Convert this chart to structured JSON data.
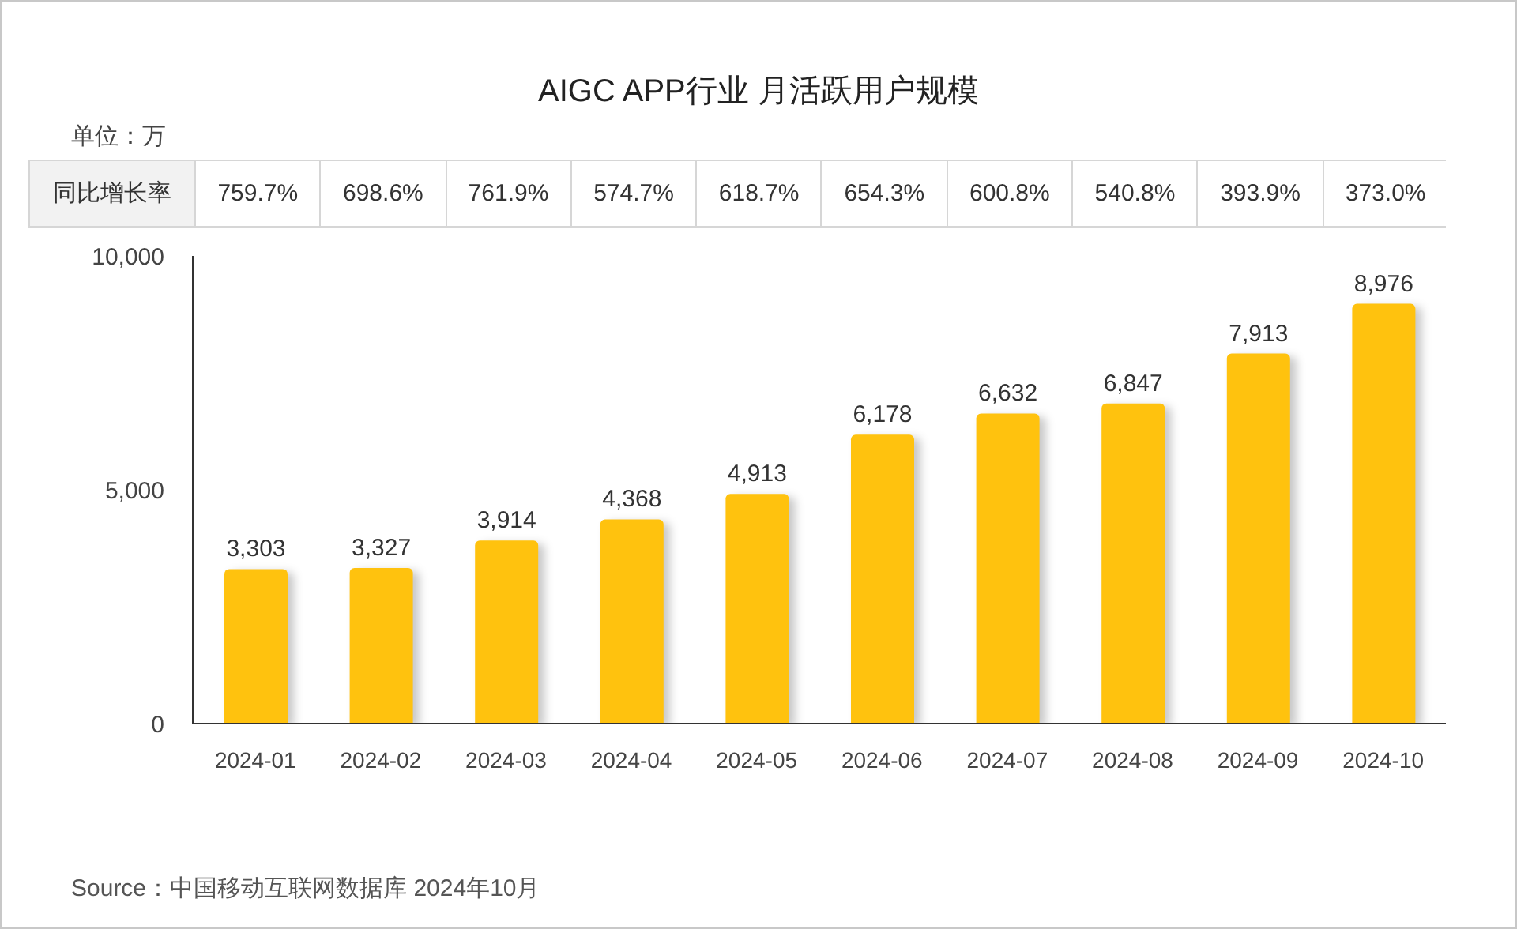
{
  "chart_data": {
    "type": "bar",
    "title": "AIGC APP行业 月活跃用户规模",
    "categories": [
      "2024-01",
      "2024-02",
      "2024-03",
      "2024-04",
      "2024-05",
      "2024-06",
      "2024-07",
      "2024-08",
      "2024-09",
      "2024-10"
    ],
    "values": [
      3303,
      3327,
      3914,
      4368,
      4913,
      6178,
      6632,
      6847,
      7913,
      8976
    ],
    "color": "#ffc20e",
    "value_labels": [
      "3,303",
      "3,327",
      "3,914",
      "4,368",
      "4,913",
      "6,178",
      "6,632",
      "6,847",
      "7,913",
      "8,976"
    ],
    "ylim": [
      0,
      10000
    ],
    "yticks": [
      0,
      {
        "value": 5000,
        "label": "5,000"
      },
      {
        "value": 10000,
        "label": "10,000"
      }
    ],
    "annotations": [
      "单位：万",
      "同比增长率",
      "759.7%",
      "698.6%",
      "761.9%",
      "574.7%",
      "618.7%",
      "654.3%",
      "600.8%",
      "540.8%",
      "393.9%",
      "373.0%",
      "Source：中国移动互联网数据库 2024年10月"
    ]
  }
}
